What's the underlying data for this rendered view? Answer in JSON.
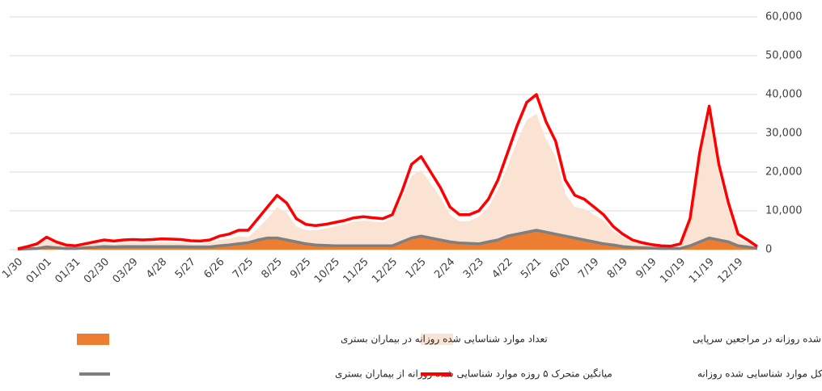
{
  "chart_data": {
    "type": "line",
    "categories": [
      "1/30",
      null,
      null,
      "01/01",
      null,
      null,
      "01/31",
      null,
      null,
      "02/30",
      null,
      null,
      "03/29",
      null,
      null,
      "4/28",
      null,
      null,
      "5/27",
      null,
      null,
      "6/26",
      null,
      null,
      "7/25",
      null,
      null,
      "8/25",
      null,
      null,
      "9/25",
      null,
      null,
      "10/25",
      null,
      null,
      "11/25",
      null,
      null,
      "12/25",
      null,
      null,
      "1/25",
      null,
      null,
      "2/24",
      null,
      null,
      "3/23",
      null,
      null,
      "4/22",
      null,
      null,
      "5/21",
      null,
      null,
      "6/20",
      null,
      null,
      "7/19",
      null,
      null,
      "8/19",
      null,
      null,
      "9/19",
      null,
      null,
      "10/19",
      null,
      null,
      "11/19",
      null,
      null,
      "12/19",
      null,
      null
    ],
    "series": [
      {
        "name": "تعداد موارد شناسایی شده روزانه در مراجعین سرپایی",
        "color": "#fbe3d3",
        "style": "area",
        "values": [
          100,
          600,
          1200,
          2500,
          1500,
          900,
          700,
          1000,
          1400,
          1700,
          1500,
          1700,
          1800,
          1700,
          1800,
          2000,
          1900,
          1800,
          1600,
          1500,
          1800,
          2500,
          2800,
          3500,
          3200,
          5500,
          8000,
          11000,
          9500,
          6000,
          5000,
          5000,
          5400,
          6000,
          6500,
          7200,
          7500,
          7200,
          7000,
          8000,
          13000,
          19000,
          20500,
          17000,
          13500,
          9000,
          7300,
          7400,
          8500,
          11000,
          15500,
          21500,
          28000,
          33500,
          35000,
          28500,
          24000,
          14500,
          11000,
          10500,
          9000,
          7500,
          4800,
          3200,
          1900,
          1300,
          900,
          700,
          600,
          1200,
          7000,
          23000,
          34000,
          19500,
          10000,
          3000,
          1800,
          500
        ]
      },
      {
        "name": "تعداد موارد شناسایی شده روزانه در بیماران بستری",
        "color": "#ed7d31",
        "style": "area",
        "values": [
          100,
          200,
          300,
          600,
          400,
          300,
          300,
          400,
          500,
          700,
          600,
          700,
          700,
          700,
          700,
          700,
          700,
          700,
          600,
          600,
          600,
          900,
          1100,
          1400,
          1600,
          2300,
          2800,
          2900,
          2400,
          1900,
          1400,
          1100,
          1000,
          900,
          900,
          900,
          900,
          900,
          900,
          900,
          1800,
          2800,
          3300,
          2800,
          2300,
          1800,
          1500,
          1400,
          1400,
          1800,
          2300,
          3200,
          3800,
          4300,
          4800,
          4300,
          3800,
          3200,
          2700,
          2300,
          1800,
          1300,
          1000,
          700,
          500,
          400,
          300,
          200,
          200,
          200,
          900,
          1800,
          2800,
          2300,
          1800,
          900,
          600,
          200
        ]
      },
      {
        "name": "میانگین متحرک ۵ روزه موارد شناسایی شده روزانه از بیماران بستری",
        "color": "#7f7f7f",
        "style": "line",
        "values": [
          100,
          200,
          300,
          700,
          500,
          300,
          300,
          500,
          600,
          800,
          700,
          800,
          800,
          800,
          800,
          800,
          800,
          800,
          700,
          700,
          700,
          1000,
          1200,
          1500,
          1800,
          2500,
          3000,
          3000,
          2500,
          2000,
          1500,
          1200,
          1100,
          1000,
          1000,
          1000,
          1000,
          1000,
          1000,
          1000,
          2000,
          3000,
          3500,
          3000,
          2500,
          2000,
          1700,
          1600,
          1500,
          2000,
          2500,
          3500,
          4000,
          4500,
          5000,
          4500,
          4000,
          3500,
          3000,
          2500,
          2000,
          1500,
          1200,
          800,
          600,
          500,
          400,
          300,
          300,
          300,
          1000,
          2000,
          3000,
          2500,
          2000,
          1000,
          700,
          300
        ]
      },
      {
        "name": "میانگین متحرک ۵ روزه کل موارد شناسایی شده روزانه",
        "color": "#ff0000",
        "style": "line",
        "values": [
          200,
          800,
          1500,
          3200,
          2000,
          1200,
          1000,
          1500,
          2000,
          2500,
          2200,
          2500,
          2600,
          2500,
          2600,
          2800,
          2700,
          2600,
          2300,
          2200,
          2500,
          3500,
          4000,
          5000,
          5000,
          8000,
          11000,
          14000,
          12000,
          8000,
          6500,
          6200,
          6500,
          7000,
          7500,
          8200,
          8500,
          8200,
          8000,
          9000,
          15000,
          22000,
          24000,
          20000,
          16000,
          11000,
          9000,
          9000,
          10000,
          13000,
          18000,
          25000,
          32000,
          38000,
          40000,
          33000,
          28000,
          18000,
          14000,
          13000,
          11000,
          9000,
          6000,
          4000,
          2500,
          1800,
          1300,
          1000,
          900,
          1500,
          8000,
          25000,
          37000,
          22000,
          12000,
          4000,
          2500,
          800
        ]
      }
    ],
    "ylim": [
      0,
      60000
    ],
    "yticks": [
      0,
      {
        "value": 10000,
        "label": "10,000"
      },
      {
        "value": 20000,
        "label": "20,000"
      },
      {
        "value": 30000,
        "label": "30,000"
      },
      {
        "value": 40000,
        "label": "40,000"
      },
      {
        "value": 50000,
        "label": "50,000"
      },
      {
        "value": 60000,
        "label": "60,000"
      }
    ],
    "grid": true
  }
}
